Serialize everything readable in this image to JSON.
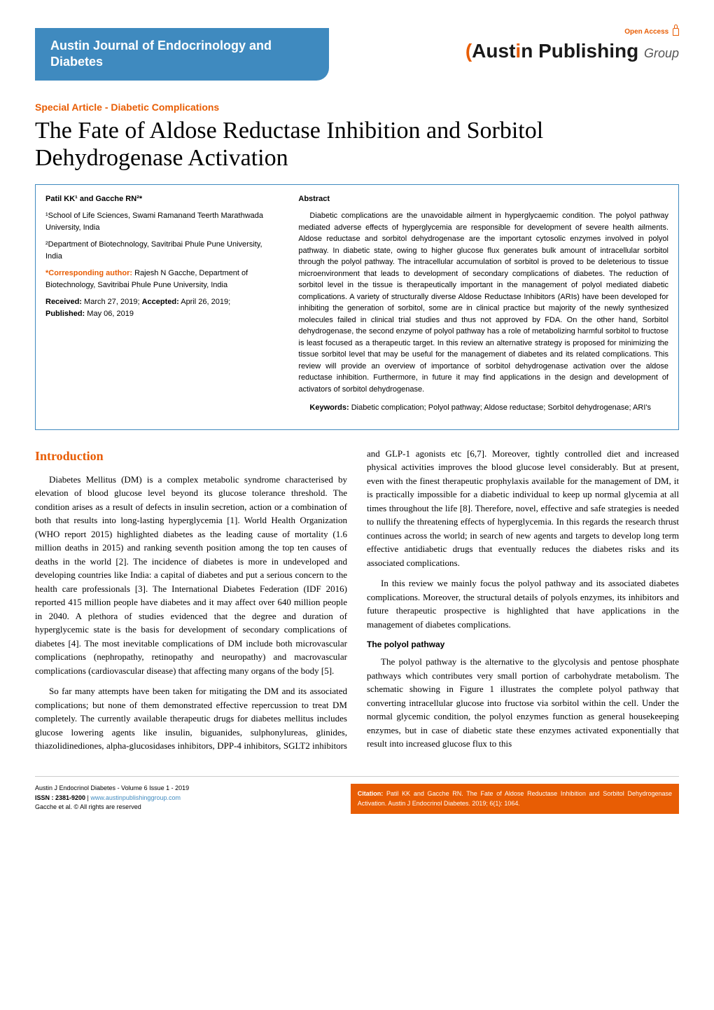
{
  "header": {
    "open_access": "Open Access",
    "journal_title": "Austin Journal of  Endocrinology and Diabetes",
    "logo_text_1": "(",
    "logo_text_2": "Aust",
    "logo_text_3": "i",
    "logo_text_4": "n",
    "logo_text_5": " Publishing ",
    "logo_text_6": "Group"
  },
  "article": {
    "type": "Special Article - Diabetic Complications",
    "title": "The Fate of Aldose Reductase Inhibition and Sorbitol Dehydrogenase Activation",
    "authors_html": "Patil KK¹ and Gacche RN²*",
    "affil1": "¹School of Life Sciences, Swami Ramanand Teerth Marathwada University, India",
    "affil2": "²Department of Biotechnology, Savitribai Phule Pune University, India",
    "corr_label": "*Corresponding author:",
    "corr_text": " Rajesh N Gacche, Department of Biotechnology, Savitribai Phule Pune University, India",
    "received_label": "Received:",
    "received": " March 27, 2019; ",
    "accepted_label": "Accepted:",
    "accepted": " April 26, 2019; ",
    "published_label": "Published:",
    "published": " May 06, 2019"
  },
  "abstract": {
    "heading": "Abstract",
    "body": "Diabetic complications are the unavoidable ailment in hyperglycaemic condition. The polyol pathway mediated adverse effects of hyperglycemia are responsible for development of severe health ailments. Aldose reductase and sorbitol dehydrogenase are the important cytosolic enzymes involved in polyol pathway. In diabetic state, owing to higher glucose flux generates bulk amount of intracellular sorbitol through the polyol pathway. The intracellular accumulation of sorbitol is proved to be deleterious to tissue microenvironment that leads to development of secondary complications of diabetes. The reduction of sorbitol level in the tissue is therapeutically important in the management of polyol mediated diabetic complications. A variety of structurally diverse Aldose Reductase Inhibitors (ARIs) have been developed for inhibiting the generation of sorbitol, some are in clinical practice but majority of the newly synthesized molecules failed in clinical trial studies and thus not approved by FDA. On the other hand, Sorbitol dehydrogenase, the second enzyme of polyol pathway has a role of metabolizing harmful sorbitol to fructose is least focused as a therapeutic target. In this review an alternative strategy is proposed for minimizing the tissue sorbitol level that may be useful for the management of diabetes and its related complications. This review will provide an overview of importance of sorbitol dehydrogenase activation over the aldose reductase inhibition. Furthermore, in future it may find applications in the design and development of activators of sorbitol dehydrogenase.",
    "keywords_label": "Keywords:",
    "keywords": " Diabetic complication; Polyol pathway; Aldose reductase; Sorbitol dehydrogenase; ARI's"
  },
  "body": {
    "h_intro": "Introduction",
    "p1": "Diabetes Mellitus (DM) is a complex metabolic syndrome characterised by elevation of blood glucose level beyond its glucose tolerance threshold. The condition arises as a result of defects in insulin secretion, action or a combination of both that results into long-lasting hyperglycemia [1]. World Health Organization (WHO report 2015) highlighted diabetes as the leading cause of mortality (1.6 million deaths in 2015) and ranking seventh position among the top ten causes of deaths in the world [2]. The incidence of diabetes is more in undeveloped and developing countries like India: a capital of diabetes and put a serious concern to the health care professionals [3]. The International Diabetes Federation (IDF 2016) reported 415 million people have diabetes and it may affect over 640 million people in 2040. A plethora of studies evidenced that the degree and duration of hyperglycemic state is the basis for development of secondary complications of diabetes [4]. The most inevitable complications of DM include both microvascular complications (nephropathy, retinopathy and neuropathy) and macrovascular complications (cardiovascular disease) that affecting many organs of the body [5].",
    "p2": "So far many attempts have been taken for mitigating the DM and its associated complications; but none of them demonstrated effective repercussion to treat DM completely. The currently available therapeutic drugs for diabetes mellitus includes glucose lowering agents like insulin, biguanides, sulphonylureas, glinides, thiazolidinediones, alpha-glucosidases inhibitors, DPP-4 inhibitors, SGLT2 inhibitors and GLP-1 agonists etc [6,7]. Moreover, tightly controlled diet and increased physical activities improves the blood glucose level considerably. But at present, even with the finest therapeutic prophylaxis available for the management of DM, it is practically impossible for a diabetic individual to keep up normal glycemia at all times throughout the life [8]. Therefore, novel, effective and safe strategies is needed to nullify the threatening effects of hyperglycemia. In this regards the research thrust continues across the world; in search of new agents and targets to develop long term effective antidiabetic drugs that eventually reduces the diabetes risks and its associated complications.",
    "p3": "In this review we mainly focus the polyol pathway and its associated diabetes complications. Moreover, the structural details of polyols enzymes, its inhibitors and future therapeutic prospective is highlighted that have applications in the management of diabetes complications.",
    "h_polyol": "The polyol pathway",
    "p4": "The polyol pathway is the alternative to the glycolysis and pentose phosphate pathways which contributes very small portion of carbohydrate metabolism. The schematic showing in Figure 1 illustrates the complete polyol pathway that converting intracellular glucose into fructose via sorbitol within the cell. Under the normal glycemic condition, the polyol enzymes function as general housekeeping enzymes, but in case of diabetic state these enzymes activated exponentially that result into increased glucose flux to this"
  },
  "footer": {
    "issue": "Austin J Endocrinol Diabetes - Volume 6 Issue 1 - 2019",
    "issn_label": "ISSN : 2381-9200",
    "url": "www.austinpublishinggroup.com",
    "rights": "Gacche et al. © All rights are reserved",
    "citation_label": "Citation:",
    "citation": " Patil KK and Gacche RN. The Fate of Aldose Reductase Inhibition and Sorbitol Dehydrogenase Activation. Austin J Endocrinol Diabetes. 2019; 6(1): 1064."
  },
  "colors": {
    "accent_blue": "#3f8abf",
    "accent_orange": "#e85d04",
    "text": "#000000",
    "bg": "#ffffff"
  }
}
